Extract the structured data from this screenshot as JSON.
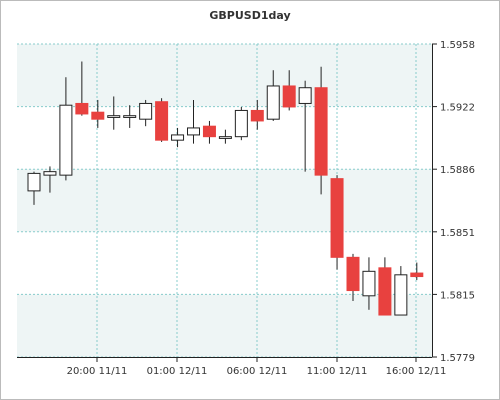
{
  "chart_data": {
    "type": "candlestick",
    "title": "GBPUSD1day",
    "y_ticks": [
      "1.5958",
      "1.5922",
      "1.5886",
      "1.5851",
      "1.5815",
      "1.5779"
    ],
    "x_ticks": [
      "20:00 11/11",
      "01:00 12/11",
      "06:00 12/11",
      "11:00 12/11",
      "16:00 12/11"
    ],
    "ylim": [
      1.5779,
      1.5958
    ],
    "grid": true,
    "candles": [
      {
        "o": 1.5874,
        "h": 1.5885,
        "l": 1.5866,
        "c": 1.5884
      },
      {
        "o": 1.5883,
        "h": 1.5888,
        "l": 1.5873,
        "c": 1.5885
      },
      {
        "o": 1.5883,
        "h": 1.5939,
        "l": 1.588,
        "c": 1.5923
      },
      {
        "o": 1.5924,
        "h": 1.5948,
        "l": 1.5917,
        "c": 1.5918
      },
      {
        "o": 1.5919,
        "h": 1.5926,
        "l": 1.591,
        "c": 1.5915
      },
      {
        "o": 1.5916,
        "h": 1.5928,
        "l": 1.5909,
        "c": 1.5917
      },
      {
        "o": 1.5916,
        "h": 1.5923,
        "l": 1.591,
        "c": 1.5917
      },
      {
        "o": 1.5915,
        "h": 1.5926,
        "l": 1.5911,
        "c": 1.5924
      },
      {
        "o": 1.5925,
        "h": 1.5927,
        "l": 1.5902,
        "c": 1.5903
      },
      {
        "o": 1.5903,
        "h": 1.591,
        "l": 1.5899,
        "c": 1.5906
      },
      {
        "o": 1.5906,
        "h": 1.5926,
        "l": 1.5901,
        "c": 1.591
      },
      {
        "o": 1.5911,
        "h": 1.5914,
        "l": 1.5901,
        "c": 1.5905
      },
      {
        "o": 1.5904,
        "h": 1.5909,
        "l": 1.5901,
        "c": 1.5905
      },
      {
        "o": 1.5905,
        "h": 1.5922,
        "l": 1.5903,
        "c": 1.592
      },
      {
        "o": 1.592,
        "h": 1.5926,
        "l": 1.5909,
        "c": 1.5914
      },
      {
        "o": 1.5915,
        "h": 1.5943,
        "l": 1.5914,
        "c": 1.5934
      },
      {
        "o": 1.5934,
        "h": 1.5943,
        "l": 1.592,
        "c": 1.5922
      },
      {
        "o": 1.5924,
        "h": 1.5937,
        "l": 1.5885,
        "c": 1.5933
      },
      {
        "o": 1.5933,
        "h": 1.5945,
        "l": 1.5872,
        "c": 1.5883
      },
      {
        "o": 1.5881,
        "h": 1.5883,
        "l": 1.5829,
        "c": 1.5836
      },
      {
        "o": 1.5836,
        "h": 1.5838,
        "l": 1.5811,
        "c": 1.5817
      },
      {
        "o": 1.5814,
        "h": 1.5836,
        "l": 1.5806,
        "c": 1.5828
      },
      {
        "o": 1.583,
        "h": 1.5836,
        "l": 1.5803,
        "c": 1.5803
      },
      {
        "o": 1.5803,
        "h": 1.5831,
        "l": 1.5803,
        "c": 1.5826
      },
      {
        "o": 1.5827,
        "h": 1.5833,
        "l": 1.5823,
        "c": 1.5825
      }
    ],
    "colors": {
      "up_body": "#ffffff",
      "down_body": "#e8413f",
      "wick": "#222222",
      "grid": "#88cccc",
      "band": "#eef5f5",
      "axis": "#222222",
      "frame": "#bbbbbb"
    }
  }
}
